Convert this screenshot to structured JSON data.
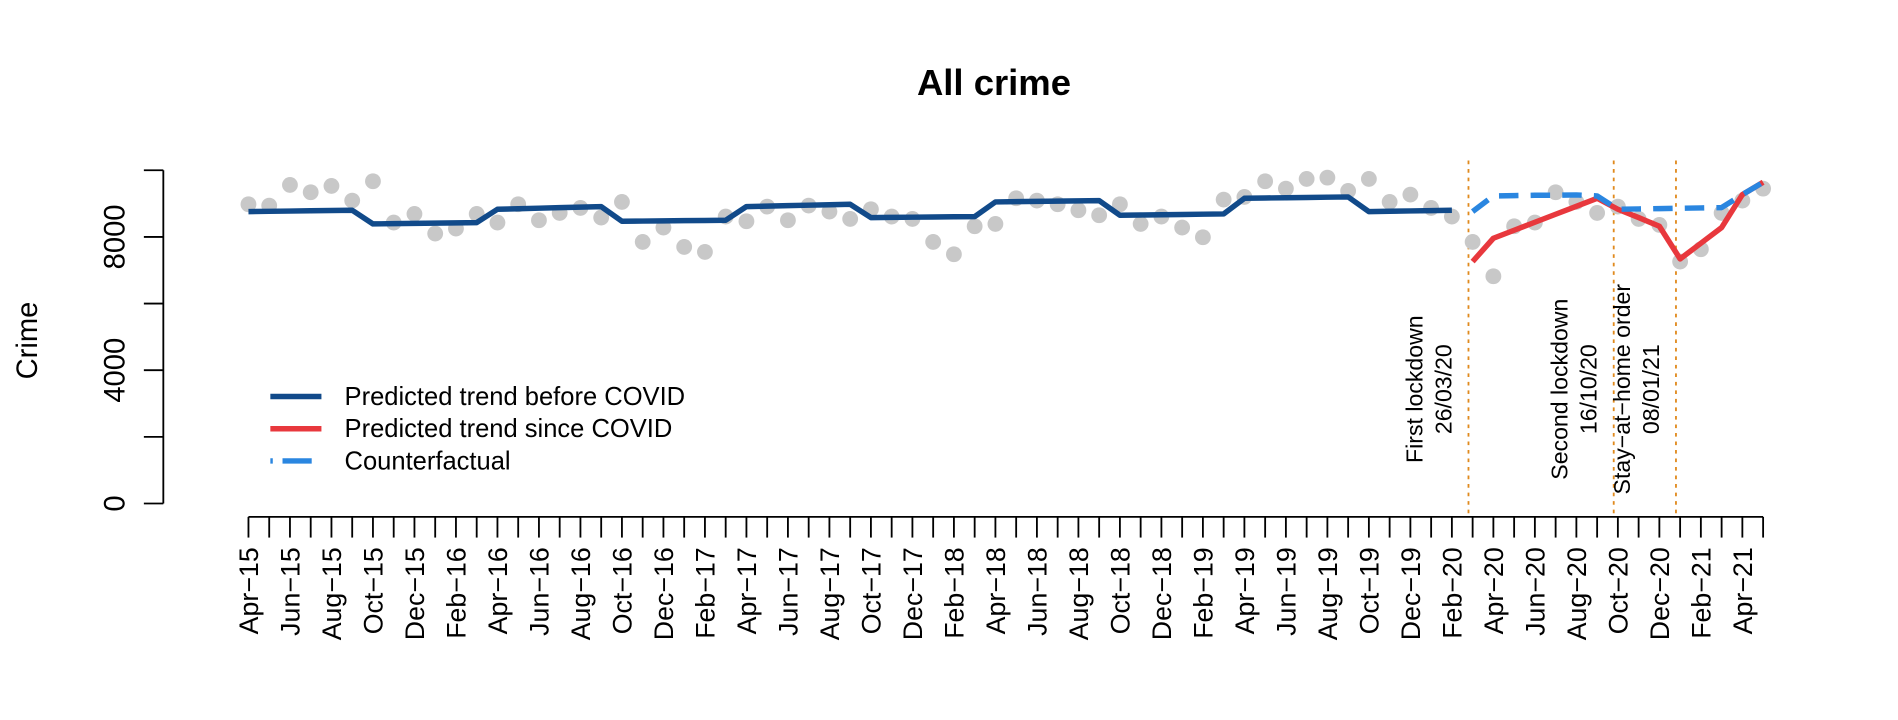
{
  "chart_data": {
    "type": "line",
    "title": "All crime",
    "y_label": "Crime",
    "categories": [
      "Apr−15",
      null,
      "Jun−15",
      null,
      "Aug−15",
      null,
      "Oct−15",
      null,
      "Dec−15",
      null,
      "Feb−16",
      null,
      "Apr−16",
      null,
      "Jun−16",
      null,
      "Aug−16",
      null,
      "Oct−16",
      null,
      "Dec−16",
      null,
      "Feb−17",
      null,
      "Apr−17",
      null,
      "Jun−17",
      null,
      "Aug−17",
      null,
      "Oct−17",
      null,
      "Dec−17",
      null,
      "Feb−18",
      null,
      "Apr−18",
      null,
      "Jun−18",
      null,
      "Aug−18",
      null,
      "Oct−18",
      null,
      "Dec−18",
      null,
      "Feb−19",
      null,
      "Apr−19",
      null,
      "Jun−19",
      null,
      "Aug−19",
      null,
      "Oct−19",
      null,
      "Dec−19",
      null,
      "Feb−20",
      null,
      "Apr−20",
      null,
      "Jun−20",
      null,
      "Aug−20",
      null,
      "Oct−20",
      null,
      "Dec−20",
      null,
      "Feb−21",
      null,
      "Apr−21",
      null
    ],
    "points": {
      "color": "#c8c8c8",
      "values": [
        8980,
        8940,
        9560,
        9340,
        9530,
        9090,
        9670,
        8430,
        8690,
        8100,
        8250,
        8690,
        8430,
        8980,
        8500,
        8720,
        8870,
        8580,
        9050,
        7850,
        8280,
        7700,
        7550,
        8610,
        8470,
        8910,
        8500,
        8940,
        8760,
        8540,
        8830,
        8610,
        8540,
        7850,
        7480,
        8320,
        8390,
        9160,
        9090,
        8980,
        8800,
        8650,
        8980,
        8390,
        8610,
        8280,
        7990,
        9120,
        9200,
        9670,
        9450,
        9740,
        9780,
        9380,
        9740,
        9050,
        9270,
        8870,
        8610,
        7850,
        6820,
        8320,
        8430,
        9340,
        9050,
        8720,
        8910,
        8540,
        8360,
        7260,
        7630,
        8720,
        9090,
        9450
      ]
    },
    "series": [
      {
        "name": "Predicted trend before COVID",
        "color": "#114a8a",
        "dash": false,
        "values": [
          8760,
          8768,
          8776,
          8784,
          8792,
          8800,
          8390,
          8398,
          8406,
          8414,
          8422,
          8430,
          8830,
          8846,
          8862,
          8878,
          8894,
          8910,
          8470,
          8476,
          8482,
          8488,
          8494,
          8500,
          8910,
          8924,
          8938,
          8952,
          8966,
          8980,
          8580,
          8586,
          8592,
          8598,
          8604,
          8610,
          9050,
          9058,
          9066,
          9074,
          9082,
          9090,
          8650,
          8658,
          8666,
          8674,
          8682,
          8690,
          9160,
          9168,
          9176,
          9184,
          9192,
          9200,
          8760,
          8770,
          8780,
          8790,
          8800,
          null,
          null,
          null,
          null,
          null,
          null,
          null,
          null,
          null,
          null,
          null,
          null,
          null,
          null,
          null
        ]
      },
      {
        "name": "Predicted trend since COVID",
        "color": "#e8383d",
        "dash": false,
        "values": [
          null,
          null,
          null,
          null,
          null,
          null,
          null,
          null,
          null,
          null,
          null,
          null,
          null,
          null,
          null,
          null,
          null,
          null,
          null,
          null,
          null,
          null,
          null,
          null,
          null,
          null,
          null,
          null,
          null,
          null,
          null,
          null,
          null,
          null,
          null,
          null,
          null,
          null,
          null,
          null,
          null,
          null,
          null,
          null,
          null,
          null,
          null,
          null,
          null,
          null,
          null,
          null,
          null,
          null,
          null,
          null,
          null,
          null,
          null,
          7260,
          7960,
          8200,
          8440,
          8680,
          8920,
          9160,
          8830,
          8580,
          8320,
          7340,
          7810,
          8280,
          9270,
          9640
        ]
      },
      {
        "name": "Counterfactual",
        "color": "#2a86e0",
        "dash": true,
        "values": [
          null,
          null,
          null,
          null,
          null,
          null,
          null,
          null,
          null,
          null,
          null,
          null,
          null,
          null,
          null,
          null,
          null,
          null,
          null,
          null,
          null,
          null,
          null,
          null,
          null,
          null,
          null,
          null,
          null,
          null,
          null,
          null,
          null,
          null,
          null,
          null,
          null,
          null,
          null,
          null,
          null,
          null,
          null,
          null,
          null,
          null,
          null,
          null,
          null,
          null,
          null,
          null,
          null,
          null,
          null,
          null,
          null,
          null,
          null,
          8760,
          9230,
          9240,
          9250,
          9250,
          9260,
          9230,
          8830,
          8840,
          8850,
          8860,
          8870,
          8880,
          9270,
          9640
        ]
      }
    ],
    "ylim": [
      0,
      10000
    ],
    "yticks": [
      0,
      4000,
      8000
    ],
    "yminor_ticks": [
      2000,
      6000,
      10000
    ],
    "events": [
      {
        "x": 58.8,
        "color": "#e08a1e",
        "label": [
          "First lockdown",
          "26/03/20"
        ]
      },
      {
        "x": 65.8,
        "color": "#e08a1e",
        "label": [
          "Second lockdown",
          "16/10/20"
        ]
      },
      {
        "x": 68.8,
        "color": "#e08a1e",
        "label": [
          "Stay−at−home order",
          "08/01/21"
        ]
      }
    ],
    "legend": "bottomleft"
  }
}
